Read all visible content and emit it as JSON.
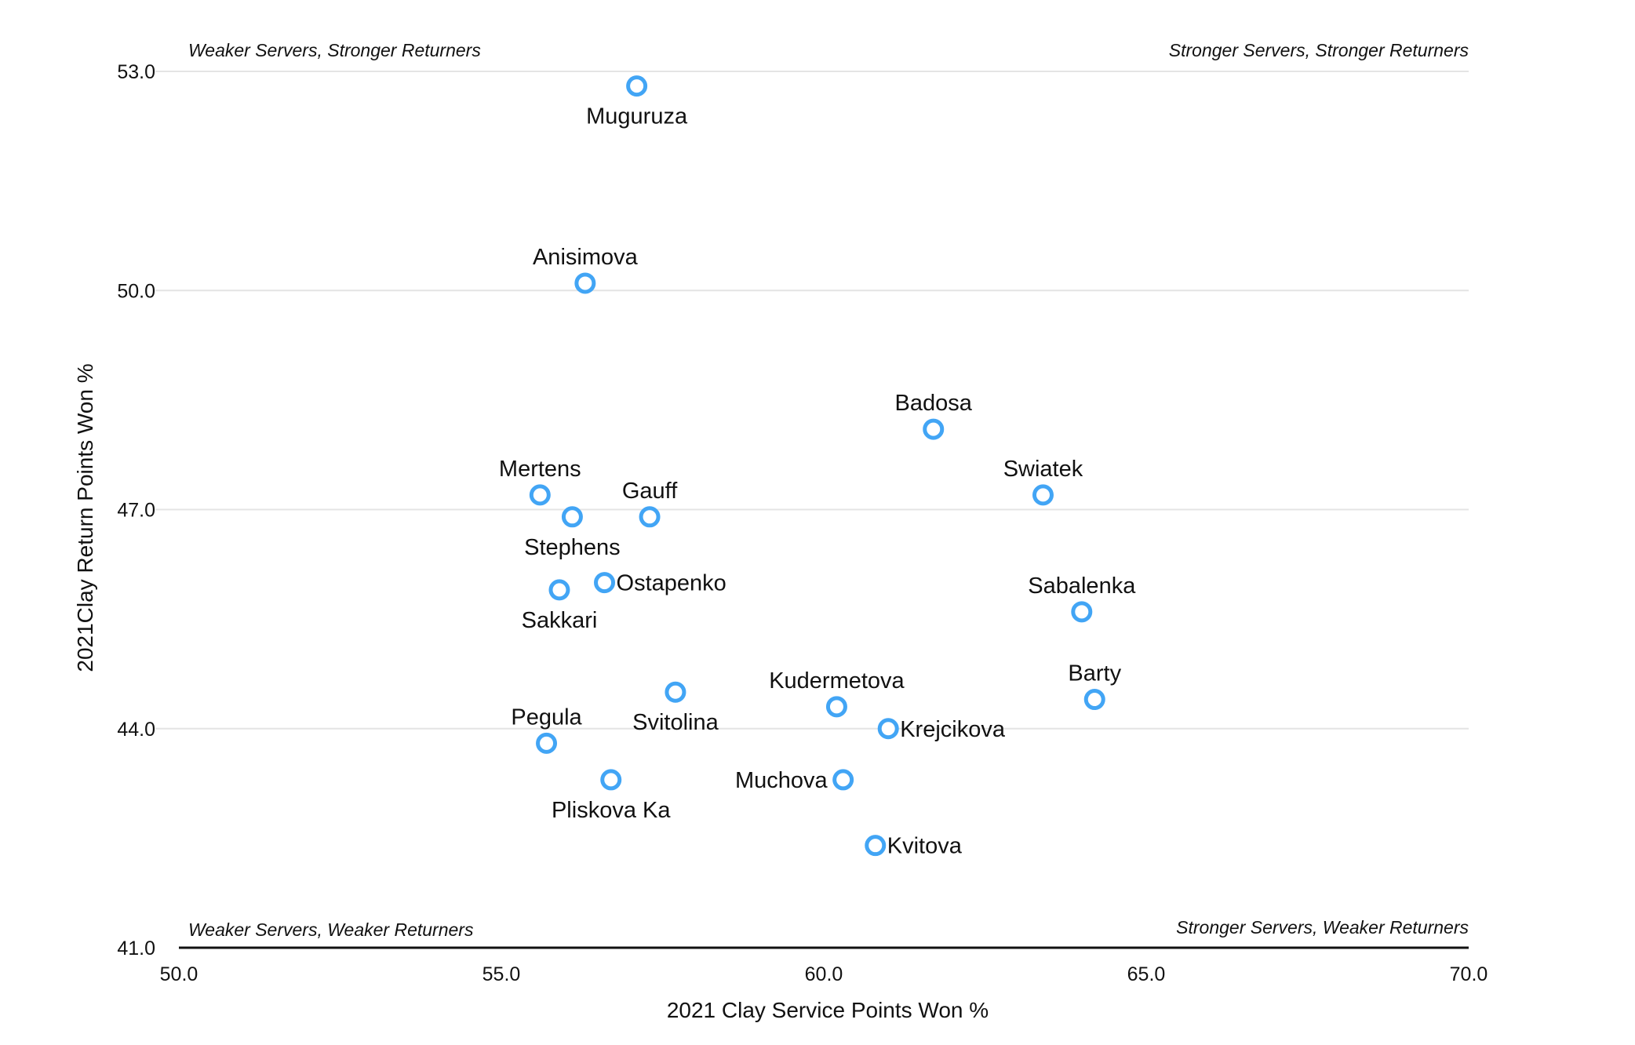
{
  "chart_data": {
    "type": "scatter",
    "title": "",
    "xlabel": "2021 Clay Service Points Won %",
    "ylabel": "2021Clay Return Points Won %",
    "xlim": [
      50,
      70
    ],
    "ylim": [
      41,
      53
    ],
    "x_ticks": [
      "50.0",
      "55.0",
      "60.0",
      "65.0",
      "70.0"
    ],
    "y_ticks": [
      "41.0",
      "44.0",
      "47.0",
      "50.0",
      "53.0"
    ],
    "grid": "horizontal",
    "legend": "none",
    "marker_color": "#42a5f5",
    "quadrant_labels": {
      "top_left": "Weaker Servers, Stronger Returners",
      "top_right": "Stronger Servers, Stronger Returners",
      "bottom_left": "Weaker Servers, Weaker Returners",
      "bottom_right": "Stronger Servers, Weaker Returners"
    },
    "points": [
      {
        "label": "Muguruza",
        "x": 57.1,
        "y": 52.8,
        "pos": "below"
      },
      {
        "label": "Anisimova",
        "x": 56.3,
        "y": 50.1,
        "pos": "above"
      },
      {
        "label": "Badosa",
        "x": 61.7,
        "y": 48.1,
        "pos": "above"
      },
      {
        "label": "Mertens",
        "x": 55.6,
        "y": 47.2,
        "pos": "above"
      },
      {
        "label": "Swiatek",
        "x": 63.4,
        "y": 47.2,
        "pos": "above"
      },
      {
        "label": "Stephens",
        "x": 56.1,
        "y": 46.9,
        "pos": "below"
      },
      {
        "label": "Gauff",
        "x": 57.3,
        "y": 46.9,
        "pos": "above"
      },
      {
        "label": "Ostapenko",
        "x": 56.6,
        "y": 46.0,
        "pos": "right"
      },
      {
        "label": "Sakkari",
        "x": 55.9,
        "y": 45.9,
        "pos": "below"
      },
      {
        "label": "Sabalenka",
        "x": 64.0,
        "y": 45.6,
        "pos": "above"
      },
      {
        "label": "Svitolina",
        "x": 57.7,
        "y": 44.5,
        "pos": "below"
      },
      {
        "label": "Barty",
        "x": 64.2,
        "y": 44.4,
        "pos": "above"
      },
      {
        "label": "Kudermetova",
        "x": 60.2,
        "y": 44.3,
        "pos": "above"
      },
      {
        "label": "Krejcikova",
        "x": 61.0,
        "y": 44.0,
        "pos": "right"
      },
      {
        "label": "Pegula",
        "x": 55.7,
        "y": 43.8,
        "pos": "above"
      },
      {
        "label": "Pliskova Ka",
        "x": 56.7,
        "y": 43.3,
        "pos": "below"
      },
      {
        "label": "Muchova",
        "x": 60.3,
        "y": 43.3,
        "pos": "left"
      },
      {
        "label": "Kvitova",
        "x": 60.8,
        "y": 42.4,
        "pos": "right"
      }
    ]
  }
}
